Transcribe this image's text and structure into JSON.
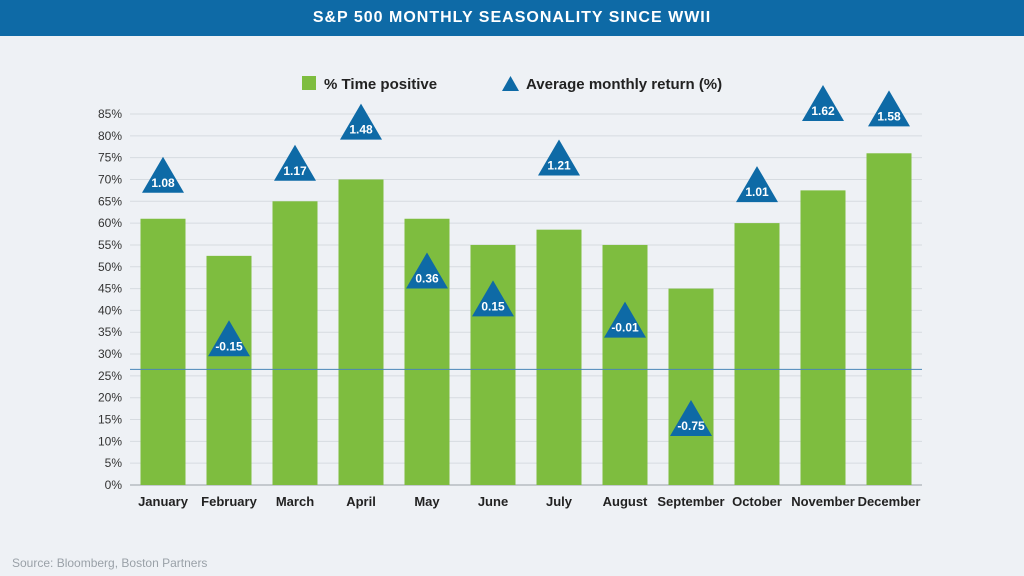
{
  "header": {
    "title": "S&P 500 MONTHLY SEASONALITY SINCE WWII"
  },
  "source": "Source: Bloomberg, Boston Partners",
  "colors": {
    "bar": "#7ebd3f",
    "triangle": "#0e6aa6",
    "grid": "#d6dbe0",
    "refline": "#4a86b8",
    "header": "#0e6aa6"
  },
  "chart_data": {
    "type": "bar",
    "categories": [
      "January",
      "February",
      "March",
      "April",
      "May",
      "June",
      "July",
      "August",
      "September",
      "October",
      "November",
      "December"
    ],
    "series": [
      {
        "name": "% Time positive",
        "type": "bar",
        "values": [
          61,
          52.5,
          65,
          70,
          61,
          55,
          58.5,
          55,
          45,
          60,
          67.5,
          76
        ]
      },
      {
        "name": "Average monthly return (%)",
        "type": "marker",
        "values": [
          1.08,
          -0.15,
          1.17,
          1.48,
          0.36,
          0.15,
          1.21,
          -0.01,
          -0.75,
          1.01,
          1.62,
          1.58
        ],
        "labels": [
          "1.08",
          "-0.15",
          "1.17",
          "1.48",
          "0.36",
          "0.15",
          "1.21",
          "-0.01",
          "-0.75",
          "1.01",
          "1.62",
          "1.58"
        ]
      }
    ],
    "ylim": [
      0,
      85
    ],
    "yticks": [
      "0%",
      "5%",
      "10%",
      "15%",
      "20%",
      "25%",
      "30%",
      "35%",
      "40%",
      "45%",
      "50%",
      "55%",
      "60%",
      "65%",
      "70%",
      "75%",
      "80%",
      "85%"
    ],
    "reference_line": 26.5,
    "grid": true,
    "legend_position": "top-center"
  }
}
